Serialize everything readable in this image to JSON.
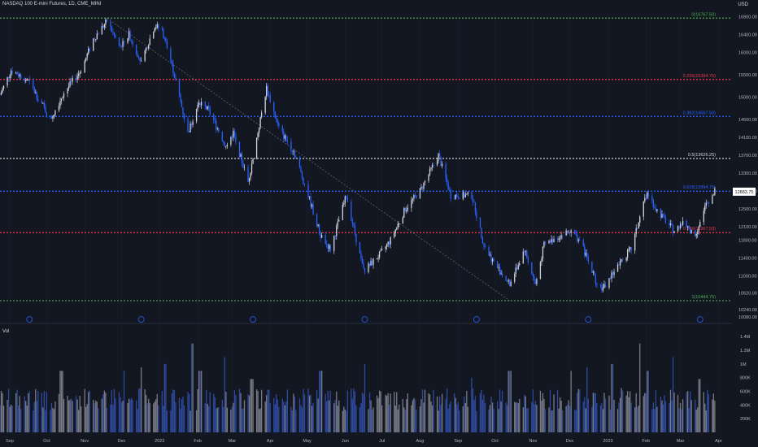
{
  "header": {
    "symbol_line": "NASDAQ 100 E-mini Futures, 1D, CME_MINI",
    "currency": "USD",
    "volume_label": "Vol"
  },
  "colors": {
    "background": "#131722",
    "up": "#d1d4dc",
    "down": "#2962ff",
    "vol_up": "#787b86",
    "vol_down": "#2e4a9e",
    "grid": "#1e222d"
  },
  "chart_data": {
    "type": "candlestick",
    "title": "",
    "price_axis_ticks": [
      "16800.00",
      "16400.00",
      "16000.00",
      "15500.00",
      "15000.00",
      "14500.00",
      "14100.00",
      "13700.00",
      "13300.00",
      "12900.00",
      "12500.00",
      "12100.00",
      "11800.00",
      "11400.00",
      "11000.00",
      "10620.00",
      "10240.00",
      "10080.00"
    ],
    "volume_axis_ticks": [
      "1.4M",
      "1.2M",
      "1M",
      "800K",
      "600K",
      "400K",
      "200K"
    ],
    "time_axis_ticks": [
      "Sep",
      "Oct",
      "Nov",
      "Dec",
      "2022",
      "Feb",
      "Mar",
      "Apr",
      "May",
      "Jun",
      "Jul",
      "Aug",
      "Sep",
      "Oct",
      "Nov",
      "Dec",
      "2023",
      "Feb",
      "Mar",
      "Apr"
    ],
    "ylim": [
      10080,
      16900
    ],
    "last_price": "12883.75",
    "fibonacci": [
      {
        "label": "0(16767.50)",
        "value": 16767.5,
        "color": "#4caf50"
      },
      {
        "label": "0.236(15394.75)",
        "value": 15394.75,
        "color": "#f23645"
      },
      {
        "label": "0.382(14567.50)",
        "value": 14567.5,
        "color": "#2962ff"
      },
      {
        "label": "0.5(13626.25)",
        "value": 13626.25,
        "color": "#d1d4dc"
      },
      {
        "label": "0.618(12894.75)",
        "value": 12894.75,
        "color": "#2962ff"
      },
      {
        "label": "0.786(11967.50)",
        "value": 11967.5,
        "color": "#f23645"
      },
      {
        "label": "1(10444.75)",
        "value": 10444.75,
        "color": "#4caf50"
      }
    ],
    "price_path": [
      [
        "Aug 24",
        15050
      ],
      [
        "Sep 2",
        15600
      ],
      [
        "Sep 15",
        15400
      ],
      [
        "Sep 28",
        14800
      ],
      [
        "Oct 4",
        14500
      ],
      [
        "Oct 15",
        15100
      ],
      [
        "Oct 29",
        15600
      ],
      [
        "Nov 8",
        16300
      ],
      [
        "Nov 19",
        16700
      ],
      [
        "Nov 30",
        16100
      ],
      [
        "Dec 7",
        16400
      ],
      [
        "Dec 17",
        15800
      ],
      [
        "Dec 28",
        16600
      ],
      [
        "Jan 3",
        16500
      ],
      [
        "Jan 12",
        15600
      ],
      [
        "Jan 24",
        14200
      ],
      [
        "Jan 28",
        14500
      ],
      [
        "Feb 2",
        14900
      ],
      [
        "Feb 10",
        14700
      ],
      [
        "Feb 24",
        13900
      ],
      [
        "Mar 2",
        14200
      ],
      [
        "Mar 14",
        13100
      ],
      [
        "Mar 29",
        15200
      ],
      [
        "Apr 8",
        14300
      ],
      [
        "Apr 20",
        13800
      ],
      [
        "May 2",
        12800
      ],
      [
        "May 12",
        11900
      ],
      [
        "May 20",
        11600
      ],
      [
        "Jun 2",
        12800
      ],
      [
        "Jun 16",
        11100
      ],
      [
        "Jun 30",
        11500
      ],
      [
        "Jul 8",
        11800
      ],
      [
        "Jul 20",
        12500
      ],
      [
        "Aug 1",
        12900
      ],
      [
        "Aug 16",
        13700
      ],
      [
        "Aug 26",
        12800
      ],
      [
        "Sep 12",
        12800
      ],
      [
        "Sep 22",
        11700
      ],
      [
        "Sep 30",
        11300
      ],
      [
        "Oct 13",
        10800
      ],
      [
        "Oct 25",
        11600
      ],
      [
        "Nov 3",
        10800
      ],
      [
        "Nov 10",
        11700
      ],
      [
        "Nov 23",
        11900
      ],
      [
        "Dec 1",
        12000
      ],
      [
        "Dec 9",
        11800
      ],
      [
        "Dec 22",
        10900
      ],
      [
        "Dec 28",
        10700
      ],
      [
        "Jan 10",
        11300
      ],
      [
        "Jan 20",
        11600
      ],
      [
        "Feb 2",
        12900
      ],
      [
        "Feb 9",
        12500
      ],
      [
        "Feb 24",
        12000
      ],
      [
        "Mar 3",
        12200
      ],
      [
        "Mar 13",
        11900
      ],
      [
        "Mar 22",
        12600
      ],
      [
        "Mar 29",
        12884
      ]
    ],
    "volume_avg": 480000,
    "volume_spikes": [
      [
        "Dec 3",
        900000
      ],
      [
        "Dec 17",
        950000
      ],
      [
        "Jan 5",
        1000000
      ],
      [
        "Jan 28",
        1300000
      ],
      [
        "Feb 24",
        1100000
      ],
      [
        "Mar 4",
        900000
      ],
      [
        "Mar 18",
        1050000
      ],
      [
        "May 12",
        900000
      ],
      [
        "Jun 16",
        1000000
      ],
      [
        "Sep 13",
        800000
      ],
      [
        "Oct 13",
        900000
      ],
      [
        "Dec 16",
        950000
      ],
      [
        "Feb 3",
        900000
      ],
      [
        "Mar 17",
        780000
      ]
    ]
  }
}
